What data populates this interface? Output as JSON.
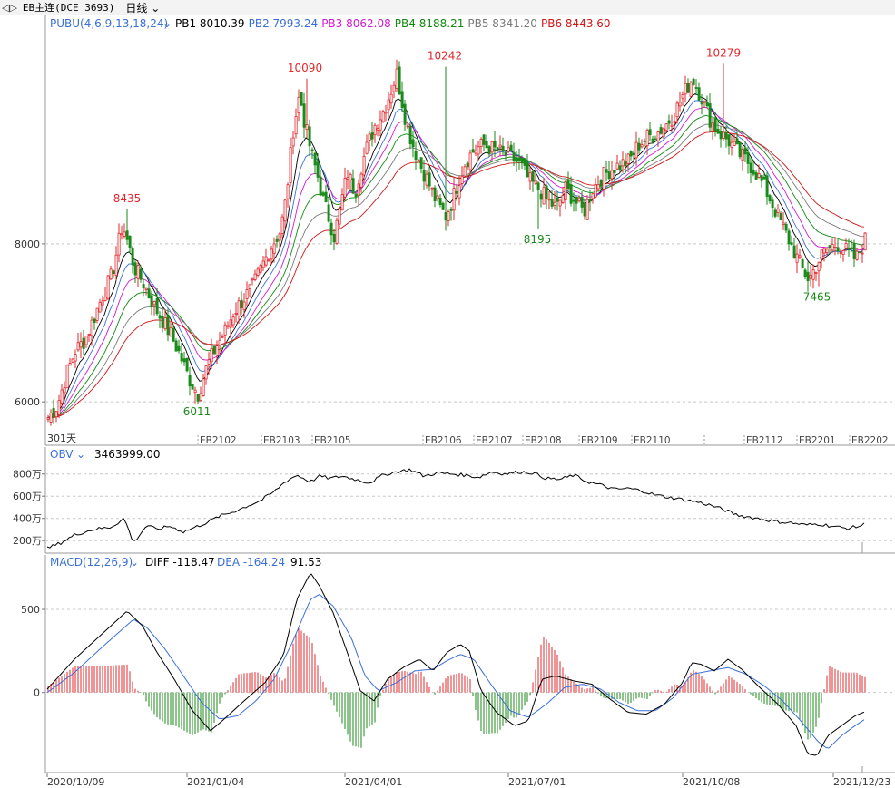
{
  "toolbar": {
    "instrument": "EB主连(DCE 3693)",
    "period": "日线"
  },
  "colors": {
    "up": "#e0282e",
    "down": "#1a8a1a",
    "grid": "#c8c8c8",
    "pb1": "#000000",
    "pb2": "#3a6fd8",
    "pb3": "#d21ad2",
    "pb4": "#118811",
    "pb5": "#7a7a7a",
    "pb6": "#d01515"
  },
  "chart_data": [
    {
      "type": "candlestick",
      "title": "PUBU(4,6,9,13,18,24)",
      "series": [
        {
          "name": "PB1",
          "value": "8010.39"
        },
        {
          "name": "PB2",
          "value": "7993.24"
        },
        {
          "name": "PB3",
          "value": "8062.08"
        },
        {
          "name": "PB4",
          "value": "8188.21"
        },
        {
          "name": "PB5",
          "value": "8341.20"
        },
        {
          "name": "PB6",
          "value": "8443.60"
        }
      ],
      "y_ticks": [
        "8000",
        "6000"
      ],
      "ylim": [
        5600,
        10650
      ],
      "x_ticks": [
        "EB2102",
        "EB2103",
        "EB2105",
        "EB2106",
        "EB2107",
        "EB2108",
        "EB2109",
        "EB2110",
        "EB2112",
        "EB2201",
        "EB2202"
      ],
      "bars_label": "301天",
      "annotations_high": [
        "8435",
        "10090",
        "10242",
        "10279"
      ],
      "annotations_low": [
        "6011",
        "8195",
        "7465"
      ],
      "close_path": [
        [
          0,
          5800
        ],
        [
          10,
          5950
        ],
        [
          20,
          6350
        ],
        [
          30,
          6650
        ],
        [
          40,
          6780
        ],
        [
          50,
          7050
        ],
        [
          60,
          7350
        ],
        [
          70,
          7600
        ],
        [
          82,
          8250
        ],
        [
          88,
          8000
        ],
        [
          95,
          7700
        ],
        [
          105,
          7500
        ],
        [
          115,
          7250
        ],
        [
          125,
          7050
        ],
        [
          135,
          6850
        ],
        [
          145,
          6600
        ],
        [
          155,
          6300
        ],
        [
          165,
          6100
        ],
        [
          175,
          6450
        ],
        [
          185,
          6700
        ],
        [
          195,
          6900
        ],
        [
          205,
          7150
        ],
        [
          215,
          7300
        ],
        [
          225,
          7450
        ],
        [
          235,
          7700
        ],
        [
          245,
          7950
        ],
        [
          255,
          8150
        ],
        [
          260,
          8400
        ],
        [
          265,
          8900
        ],
        [
          270,
          9450
        ],
        [
          277,
          9900
        ],
        [
          283,
          9500
        ],
        [
          290,
          9150
        ],
        [
          297,
          8850
        ],
        [
          303,
          8550
        ],
        [
          310,
          8300
        ],
        [
          315,
          8100
        ],
        [
          320,
          8350
        ],
        [
          325,
          8650
        ],
        [
          330,
          8900
        ],
        [
          338,
          8650
        ],
        [
          344,
          8950
        ],
        [
          352,
          9250
        ],
        [
          360,
          9500
        ],
        [
          370,
          9700
        ],
        [
          378,
          9950
        ],
        [
          384,
          10150
        ],
        [
          390,
          9800
        ],
        [
          395,
          9500
        ],
        [
          402,
          9250
        ],
        [
          410,
          9000
        ],
        [
          418,
          8800
        ],
        [
          425,
          8600
        ],
        [
          432,
          8450
        ],
        [
          438,
          8350
        ],
        [
          445,
          8550
        ],
        [
          452,
          8800
        ],
        [
          460,
          9050
        ],
        [
          470,
          9200
        ],
        [
          480,
          9250
        ],
        [
          490,
          9200
        ],
        [
          500,
          9150
        ],
        [
          510,
          9100
        ],
        [
          520,
          9000
        ],
        [
          530,
          8800
        ],
        [
          540,
          8700
        ],
        [
          550,
          8550
        ],
        [
          560,
          8450
        ],
        [
          570,
          8700
        ],
        [
          580,
          8550
        ],
        [
          590,
          8400
        ],
        [
          600,
          8700
        ],
        [
          610,
          8850
        ],
        [
          620,
          8950
        ],
        [
          630,
          9000
        ],
        [
          640,
          9050
        ],
        [
          650,
          9250
        ],
        [
          660,
          9350
        ],
        [
          670,
          9400
        ],
        [
          680,
          9500
        ],
        [
          690,
          9650
        ],
        [
          700,
          9900
        ],
        [
          710,
          10100
        ],
        [
          720,
          9850
        ],
        [
          730,
          9550
        ],
        [
          740,
          9400
        ],
        [
          750,
          9300
        ],
        [
          760,
          9150
        ],
        [
          770,
          9050
        ],
        [
          780,
          8900
        ],
        [
          790,
          8700
        ],
        [
          800,
          8450
        ],
        [
          810,
          8200
        ],
        [
          820,
          7950
        ],
        [
          830,
          7700
        ],
        [
          838,
          7550
        ],
        [
          845,
          7700
        ],
        [
          852,
          7850
        ],
        [
          860,
          7950
        ],
        [
          870,
          8000
        ],
        [
          880,
          7900
        ],
        [
          890,
          7800
        ],
        [
          900,
          8050
        ]
      ],
      "extremes": [
        [
          88,
          8435
        ],
        [
          165,
          6011
        ],
        [
          284,
          10090
        ],
        [
          438,
          10242
        ],
        [
          540,
          8195
        ],
        [
          745,
          10279
        ],
        [
          848,
          7465
        ]
      ]
    },
    {
      "type": "line",
      "title": "OBV",
      "series": [
        {
          "name": "OBV",
          "value": "3463999.00"
        }
      ],
      "y_ticks": [
        "800万",
        "600万",
        "400万",
        "200万"
      ],
      "ylim": [
        1200000,
        9200000
      ],
      "x": [
        0,
        15,
        30,
        50,
        70,
        85,
        95,
        110,
        120,
        135,
        150,
        160,
        175,
        190,
        205,
        220,
        235,
        250,
        262,
        275,
        290,
        300,
        312,
        325,
        340,
        355,
        370,
        385,
        400,
        415,
        430,
        445,
        460,
        475,
        490,
        505,
        520,
        535,
        550,
        565,
        580,
        595,
        610,
        625,
        640,
        655,
        670,
        685,
        700,
        715,
        730,
        745,
        760,
        775,
        790,
        805,
        820,
        835,
        850,
        865,
        880,
        895,
        900
      ],
      "values": [
        1300000,
        1800000,
        2500000,
        3000000,
        3200000,
        4000000,
        1800000,
        3400000,
        3000000,
        3300000,
        2800000,
        3100000,
        3600000,
        4200000,
        4600000,
        5100000,
        5600000,
        6400000,
        7300000,
        7900000,
        7300000,
        7800000,
        7600000,
        7800000,
        7500000,
        7200000,
        7900000,
        8200000,
        8400000,
        7800000,
        8100000,
        8000000,
        7900000,
        7700000,
        8200000,
        8000000,
        8200000,
        8100000,
        7600000,
        7500000,
        7900000,
        7300000,
        7000000,
        6600000,
        6700000,
        6500000,
        6100000,
        5900000,
        5700000,
        5500000,
        5200000,
        4800000,
        4300000,
        4100000,
        3900000,
        3700000,
        3600000,
        3400000,
        3500000,
        3300000,
        3100000,
        3300000,
        3464000
      ]
    },
    {
      "type": "bar_line",
      "title": "MACD(12,26,9)",
      "series": [
        {
          "name": "DIFF",
          "value": "-118.47"
        },
        {
          "name": "DEA",
          "value": "-164.24"
        },
        {
          "name": "MACD",
          "value": "91.53"
        }
      ],
      "y_ticks": [
        "500",
        "0"
      ],
      "ylim": [
        -460,
        740
      ],
      "diff_path": [
        [
          0,
          20
        ],
        [
          30,
          200
        ],
        [
          60,
          350
        ],
        [
          88,
          490
        ],
        [
          105,
          400
        ],
        [
          120,
          250
        ],
        [
          140,
          80
        ],
        [
          160,
          -110
        ],
        [
          180,
          -230
        ],
        [
          195,
          -160
        ],
        [
          215,
          -60
        ],
        [
          240,
          60
        ],
        [
          260,
          220
        ],
        [
          275,
          560
        ],
        [
          290,
          720
        ],
        [
          300,
          640
        ],
        [
          315,
          480
        ],
        [
          330,
          250
        ],
        [
          345,
          10
        ],
        [
          360,
          -50
        ],
        [
          375,
          80
        ],
        [
          392,
          150
        ],
        [
          410,
          200
        ],
        [
          425,
          130
        ],
        [
          440,
          240
        ],
        [
          455,
          290
        ],
        [
          465,
          250
        ],
        [
          478,
          10
        ],
        [
          495,
          -120
        ],
        [
          515,
          -200
        ],
        [
          530,
          -170
        ],
        [
          545,
          80
        ],
        [
          560,
          100
        ],
        [
          580,
          70
        ],
        [
          600,
          50
        ],
        [
          620,
          -40
        ],
        [
          640,
          -120
        ],
        [
          660,
          -130
        ],
        [
          680,
          -70
        ],
        [
          700,
          60
        ],
        [
          710,
          180
        ],
        [
          720,
          170
        ],
        [
          735,
          130
        ],
        [
          750,
          200
        ],
        [
          765,
          140
        ],
        [
          785,
          30
        ],
        [
          805,
          -70
        ],
        [
          825,
          -200
        ],
        [
          838,
          -370
        ],
        [
          848,
          -380
        ],
        [
          860,
          -260
        ],
        [
          875,
          -200
        ],
        [
          890,
          -140
        ],
        [
          900,
          -118
        ]
      ],
      "dea_path": [
        [
          0,
          0
        ],
        [
          30,
          120
        ],
        [
          60,
          270
        ],
        [
          95,
          440
        ],
        [
          110,
          390
        ],
        [
          130,
          260
        ],
        [
          150,
          100
        ],
        [
          170,
          -60
        ],
        [
          190,
          -160
        ],
        [
          210,
          -140
        ],
        [
          230,
          -50
        ],
        [
          250,
          80
        ],
        [
          270,
          300
        ],
        [
          290,
          560
        ],
        [
          300,
          590
        ],
        [
          315,
          520
        ],
        [
          335,
          330
        ],
        [
          350,
          100
        ],
        [
          365,
          10
        ],
        [
          385,
          60
        ],
        [
          405,
          130
        ],
        [
          425,
          140
        ],
        [
          440,
          190
        ],
        [
          455,
          230
        ],
        [
          470,
          200
        ],
        [
          490,
          40
        ],
        [
          510,
          -110
        ],
        [
          530,
          -150
        ],
        [
          550,
          -70
        ],
        [
          570,
          30
        ],
        [
          590,
          50
        ],
        [
          610,
          20
        ],
        [
          630,
          -60
        ],
        [
          650,
          -110
        ],
        [
          670,
          -110
        ],
        [
          690,
          -30
        ],
        [
          710,
          110
        ],
        [
          730,
          130
        ],
        [
          750,
          150
        ],
        [
          770,
          110
        ],
        [
          790,
          40
        ],
        [
          810,
          -50
        ],
        [
          830,
          -170
        ],
        [
          850,
          -300
        ],
        [
          860,
          -340
        ],
        [
          875,
          -260
        ],
        [
          890,
          -200
        ],
        [
          900,
          -164
        ]
      ]
    }
  ],
  "x_dates": [
    "2020/10/09",
    "2021/01/04",
    "2021/04/01",
    "2021/07/01",
    "2021/10/08",
    "2021/12/23"
  ]
}
